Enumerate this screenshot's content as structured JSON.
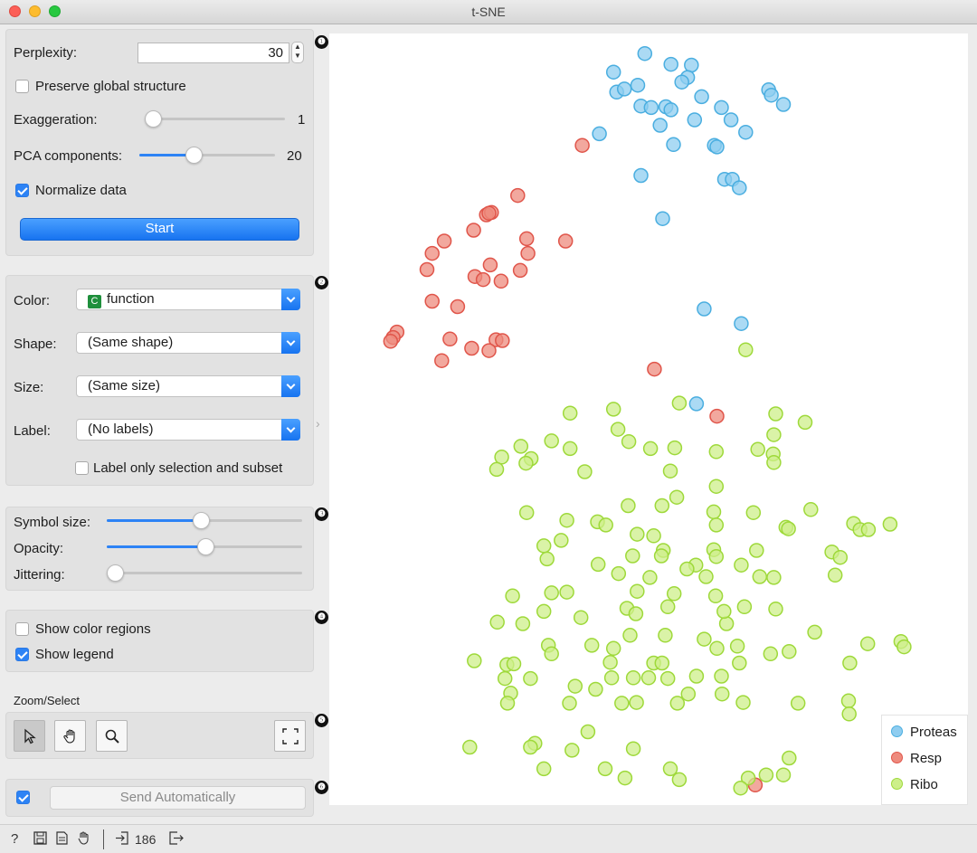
{
  "window": {
    "title": "t-SNE"
  },
  "params": {
    "perplexity_label": "Perplexity:",
    "perplexity_value": "30",
    "preserve_global_label": "Preserve global structure",
    "preserve_global_checked": false,
    "exaggeration_label": "Exaggeration:",
    "exaggeration_value": "1",
    "exaggeration_level": 0.0,
    "pca_label": "PCA components:",
    "pca_value": "20",
    "pca_level": 0.39,
    "normalize_label": "Normalize data",
    "normalize_checked": true,
    "start_label": "Start"
  },
  "attrs": {
    "color_label": "Color:",
    "color_value": "function",
    "color_icon": "C",
    "shape_label": "Shape:",
    "shape_value": "(Same shape)",
    "size_label": "Size:",
    "size_value": "(Same size)",
    "label_label": "Label:",
    "label_value": "(No labels)",
    "label_only_label": "Label only selection and subset",
    "label_only_checked": false
  },
  "visual": {
    "symbol_size_label": "Symbol size:",
    "symbol_size_level": 0.48,
    "opacity_label": "Opacity:",
    "opacity_level": 0.51,
    "jittering_label": "Jittering:",
    "jittering_level": 0.0
  },
  "options": {
    "color_regions_label": "Show color regions",
    "color_regions_checked": false,
    "legend_label": "Show legend",
    "legend_checked": true
  },
  "zoom": {
    "title": "Zoom/Select"
  },
  "output": {
    "auto_checked": true,
    "send_label": "Send Automatically"
  },
  "badges": [
    "❶",
    "❷",
    "❸",
    "❹",
    "❺",
    "❻"
  ],
  "status": {
    "count": "186"
  },
  "colors": {
    "Proteas": "#8fcdf0",
    "Resp": "#ee8b7e",
    "Ribo": "#cdef8a",
    "accent": "#2d83f5"
  },
  "legend": {
    "items": [
      "Proteas",
      "Resp",
      "Ribo"
    ]
  },
  "chart_data": {
    "type": "scatter",
    "title": "",
    "xlabel": "",
    "ylabel": "",
    "x_range": [
      0,
      100
    ],
    "y_range": [
      0,
      100
    ],
    "grid": false,
    "legend_position": "bottom-right",
    "series": [
      {
        "name": "Proteas",
        "points": [
          [
            49.4,
            97.4
          ],
          [
            44.5,
            95.0
          ],
          [
            53.5,
            96.0
          ],
          [
            56.7,
            95.9
          ],
          [
            45.0,
            92.4
          ],
          [
            48.3,
            93.3
          ],
          [
            56.1,
            94.3
          ],
          [
            58.3,
            91.8
          ],
          [
            46.2,
            92.8
          ],
          [
            55.2,
            93.7
          ],
          [
            68.8,
            92.7
          ],
          [
            69.2,
            92.0
          ],
          [
            71.1,
            90.8
          ],
          [
            48.8,
            90.6
          ],
          [
            50.4,
            90.4
          ],
          [
            52.7,
            90.5
          ],
          [
            53.5,
            90.1
          ],
          [
            61.4,
            90.4
          ],
          [
            57.2,
            88.8
          ],
          [
            62.9,
            88.8
          ],
          [
            51.8,
            88.1
          ],
          [
            65.2,
            87.2
          ],
          [
            42.3,
            87.0
          ],
          [
            53.9,
            85.6
          ],
          [
            60.3,
            85.5
          ],
          [
            60.7,
            85.3
          ],
          [
            48.8,
            81.6
          ],
          [
            61.9,
            81.1
          ],
          [
            63.1,
            81.1
          ],
          [
            64.2,
            80.0
          ],
          [
            52.2,
            76.0
          ],
          [
            58.7,
            64.3
          ],
          [
            64.5,
            62.4
          ],
          [
            57.5,
            52.0
          ]
        ]
      },
      {
        "name": "Resp",
        "points": [
          [
            39.6,
            85.5
          ],
          [
            29.5,
            79.0
          ],
          [
            24.6,
            76.5
          ],
          [
            25.4,
            76.8
          ],
          [
            25.0,
            76.7
          ],
          [
            22.6,
            74.5
          ],
          [
            18.0,
            73.1
          ],
          [
            30.9,
            73.4
          ],
          [
            37.0,
            73.1
          ],
          [
            31.1,
            71.5
          ],
          [
            16.1,
            71.5
          ],
          [
            25.2,
            70.0
          ],
          [
            29.9,
            69.3
          ],
          [
            15.3,
            69.4
          ],
          [
            22.8,
            68.5
          ],
          [
            24.1,
            68.1
          ],
          [
            26.9,
            67.9
          ],
          [
            16.1,
            65.3
          ],
          [
            20.1,
            64.6
          ],
          [
            10.6,
            61.3
          ],
          [
            10.0,
            60.6
          ],
          [
            9.6,
            60.1
          ],
          [
            18.9,
            60.4
          ],
          [
            26.1,
            60.3
          ],
          [
            27.1,
            60.2
          ],
          [
            22.3,
            59.2
          ],
          [
            25.0,
            58.9
          ],
          [
            17.6,
            57.6
          ],
          [
            50.9,
            56.5
          ],
          [
            60.7,
            50.4
          ],
          [
            66.7,
            2.6
          ]
        ]
      },
      {
        "name": "Ribo",
        "points": [
          [
            65.2,
            59.0
          ],
          [
            54.8,
            52.1
          ],
          [
            44.5,
            51.3
          ],
          [
            37.7,
            50.8
          ],
          [
            69.9,
            50.7
          ],
          [
            74.5,
            49.6
          ],
          [
            45.2,
            48.7
          ],
          [
            69.6,
            48.0
          ],
          [
            34.8,
            47.2
          ],
          [
            46.9,
            47.1
          ],
          [
            30.0,
            46.5
          ],
          [
            37.7,
            46.2
          ],
          [
            50.3,
            46.2
          ],
          [
            54.1,
            46.3
          ],
          [
            60.6,
            45.8
          ],
          [
            67.1,
            46.1
          ],
          [
            69.5,
            45.5
          ],
          [
            27.0,
            45.1
          ],
          [
            31.6,
            44.9
          ],
          [
            30.8,
            44.3
          ],
          [
            69.6,
            44.4
          ],
          [
            26.2,
            43.5
          ],
          [
            40.0,
            43.2
          ],
          [
            53.4,
            43.3
          ],
          [
            60.6,
            41.3
          ],
          [
            54.4,
            39.9
          ],
          [
            46.8,
            38.8
          ],
          [
            52.1,
            38.8
          ],
          [
            30.9,
            37.9
          ],
          [
            60.2,
            38.0
          ],
          [
            66.4,
            37.9
          ],
          [
            75.4,
            38.3
          ],
          [
            37.2,
            36.9
          ],
          [
            42.0,
            36.7
          ],
          [
            43.3,
            36.3
          ],
          [
            60.6,
            36.3
          ],
          [
            71.5,
            36.0
          ],
          [
            71.9,
            35.8
          ],
          [
            82.1,
            36.5
          ],
          [
            83.1,
            35.7
          ],
          [
            84.4,
            35.7
          ],
          [
            87.8,
            36.4
          ],
          [
            48.2,
            35.1
          ],
          [
            50.8,
            34.9
          ],
          [
            36.3,
            34.3
          ],
          [
            33.6,
            33.6
          ],
          [
            52.3,
            33.0
          ],
          [
            60.2,
            33.1
          ],
          [
            66.9,
            33.0
          ],
          [
            78.7,
            32.8
          ],
          [
            34.1,
            31.9
          ],
          [
            47.5,
            32.3
          ],
          [
            52.0,
            32.3
          ],
          [
            60.6,
            32.2
          ],
          [
            80.0,
            32.1
          ],
          [
            64.5,
            31.1
          ],
          [
            42.1,
            31.2
          ],
          [
            57.4,
            31.1
          ],
          [
            56.0,
            30.6
          ],
          [
            79.2,
            29.8
          ],
          [
            45.3,
            30.0
          ],
          [
            50.2,
            29.5
          ],
          [
            59.0,
            29.6
          ],
          [
            67.4,
            29.6
          ],
          [
            69.6,
            29.5
          ],
          [
            37.2,
            27.6
          ],
          [
            34.8,
            27.5
          ],
          [
            54.0,
            27.4
          ],
          [
            60.5,
            27.1
          ],
          [
            28.7,
            27.1
          ],
          [
            48.2,
            27.7
          ],
          [
            53.0,
            25.7
          ],
          [
            46.6,
            25.5
          ],
          [
            65.0,
            25.7
          ],
          [
            69.9,
            25.4
          ],
          [
            33.6,
            25.1
          ],
          [
            39.4,
            24.3
          ],
          [
            48.0,
            24.8
          ],
          [
            62.2,
            23.5
          ],
          [
            76.0,
            22.4
          ],
          [
            61.8,
            25.1
          ],
          [
            47.1,
            22.0
          ],
          [
            52.6,
            22.0
          ],
          [
            58.7,
            21.5
          ],
          [
            84.3,
            20.9
          ],
          [
            89.5,
            21.2
          ],
          [
            90.0,
            20.5
          ],
          [
            26.3,
            23.7
          ],
          [
            30.3,
            23.5
          ],
          [
            34.3,
            20.7
          ],
          [
            41.1,
            20.7
          ],
          [
            44.5,
            20.3
          ],
          [
            60.7,
            20.3
          ],
          [
            63.9,
            20.6
          ],
          [
            34.8,
            19.6
          ],
          [
            72.0,
            19.9
          ],
          [
            69.1,
            19.6
          ],
          [
            22.7,
            18.7
          ],
          [
            27.8,
            18.2
          ],
          [
            28.9,
            18.3
          ],
          [
            44.0,
            18.5
          ],
          [
            50.8,
            18.4
          ],
          [
            52.1,
            18.4
          ],
          [
            64.2,
            18.4
          ],
          [
            81.5,
            18.4
          ],
          [
            27.5,
            16.4
          ],
          [
            31.5,
            16.4
          ],
          [
            44.2,
            16.5
          ],
          [
            50.0,
            16.5
          ],
          [
            38.5,
            15.4
          ],
          [
            47.6,
            16.5
          ],
          [
            53.0,
            16.4
          ],
          [
            57.5,
            16.7
          ],
          [
            61.4,
            16.7
          ],
          [
            28.4,
            14.5
          ],
          [
            41.7,
            15.0
          ],
          [
            56.2,
            14.4
          ],
          [
            61.5,
            14.4
          ],
          [
            27.9,
            13.2
          ],
          [
            37.6,
            13.2
          ],
          [
            45.8,
            13.2
          ],
          [
            48.1,
            13.3
          ],
          [
            54.5,
            13.2
          ],
          [
            64.8,
            13.3
          ],
          [
            73.4,
            13.2
          ],
          [
            81.3,
            13.5
          ],
          [
            81.4,
            11.8
          ],
          [
            40.5,
            9.5
          ],
          [
            32.2,
            8.0
          ],
          [
            47.6,
            7.3
          ],
          [
            22.0,
            7.5
          ],
          [
            31.5,
            7.5
          ],
          [
            38.0,
            7.1
          ],
          [
            72.0,
            6.1
          ],
          [
            33.6,
            4.7
          ],
          [
            43.2,
            4.7
          ],
          [
            53.4,
            4.7
          ],
          [
            46.3,
            3.5
          ],
          [
            65.6,
            3.5
          ],
          [
            68.4,
            3.9
          ],
          [
            71.1,
            3.9
          ],
          [
            54.8,
            3.3
          ],
          [
            64.4,
            2.2
          ]
        ]
      }
    ]
  }
}
